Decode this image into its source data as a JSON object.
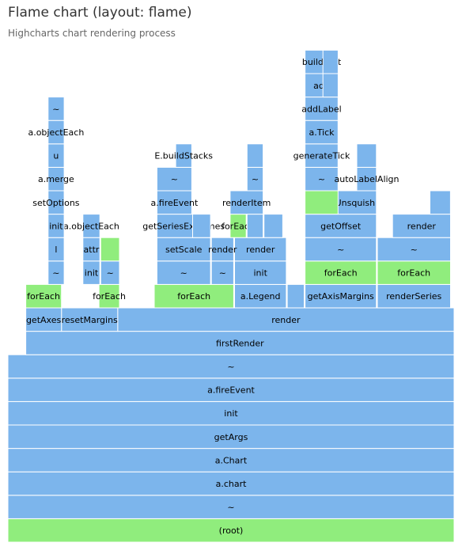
{
  "chart_data": {
    "type": "flame",
    "title": "Flame chart (layout: flame)",
    "subtitle": "Highcharts chart rendering process",
    "colors": {
      "node": "#7cb5ec",
      "highlight": "#90ed7d",
      "border": "#ffffff"
    },
    "frames": [
      {
        "name": "(root)",
        "level": 0,
        "start": 0,
        "end": 100,
        "color": "green"
      },
      {
        "name": "~",
        "level": 1,
        "start": 0,
        "end": 100
      },
      {
        "name": "a.chart",
        "level": 2,
        "start": 0,
        "end": 100
      },
      {
        "name": "a.Chart",
        "level": 3,
        "start": 0,
        "end": 100
      },
      {
        "name": "getArgs",
        "level": 4,
        "start": 0,
        "end": 100
      },
      {
        "name": "init",
        "level": 5,
        "start": 0,
        "end": 100
      },
      {
        "name": "a.fireEvent",
        "level": 6,
        "start": 0,
        "end": 100
      },
      {
        "name": "~",
        "level": 7,
        "start": 0,
        "end": 100
      },
      {
        "name": "firstRender",
        "level": 8,
        "start": 4.0,
        "end": 100
      },
      {
        "name": "getAxes",
        "level": 9,
        "start": 4.0,
        "end": 12.0
      },
      {
        "name": "resetMargins",
        "level": 9,
        "start": 12.0,
        "end": 24.6
      },
      {
        "name": "render",
        "level": 9,
        "start": 24.6,
        "end": 100
      },
      {
        "name": "forEach",
        "level": 10,
        "start": 4.0,
        "end": 12.0,
        "color": "green"
      },
      {
        "name": "forEach",
        "level": 10,
        "start": 20.4,
        "end": 25.0,
        "color": "green"
      },
      {
        "name": "forEach",
        "level": 10,
        "start": 32.8,
        "end": 50.6,
        "color": "green"
      },
      {
        "name": "a.Legend",
        "level": 10,
        "start": 50.8,
        "end": 62.4
      },
      {
        "name": "",
        "level": 10,
        "start": 62.6,
        "end": 66.4
      },
      {
        "name": "getAxisMargins",
        "level": 10,
        "start": 66.6,
        "end": 82.6
      },
      {
        "name": "renderSeries",
        "level": 10,
        "start": 82.8,
        "end": 99.2
      },
      {
        "name": "~",
        "level": 11,
        "start": 9.0,
        "end": 12.6
      },
      {
        "name": "init",
        "level": 11,
        "start": 16.8,
        "end": 20.6
      },
      {
        "name": "~",
        "level": 11,
        "start": 20.8,
        "end": 25.0
      },
      {
        "name": "~",
        "level": 11,
        "start": 33.4,
        "end": 45.4
      },
      {
        "name": "~",
        "level": 11,
        "start": 45.6,
        "end": 50.6
      },
      {
        "name": "init",
        "level": 11,
        "start": 50.8,
        "end": 62.4
      },
      {
        "name": "forEach",
        "level": 11,
        "start": 66.6,
        "end": 82.6,
        "color": "green"
      },
      {
        "name": "forEach",
        "level": 11,
        "start": 82.8,
        "end": 99.2,
        "color": "green"
      },
      {
        "name": "l",
        "level": 12,
        "start": 9.0,
        "end": 12.6
      },
      {
        "name": "attr",
        "level": 12,
        "start": 16.8,
        "end": 20.6
      },
      {
        "name": "",
        "level": 12,
        "start": 20.8,
        "end": 25.0,
        "color": "green"
      },
      {
        "name": "setScale",
        "level": 12,
        "start": 33.4,
        "end": 45.4
      },
      {
        "name": "render",
        "level": 12,
        "start": 45.6,
        "end": 50.6
      },
      {
        "name": "render",
        "level": 12,
        "start": 50.8,
        "end": 62.4
      },
      {
        "name": "~",
        "level": 12,
        "start": 66.6,
        "end": 82.6
      },
      {
        "name": "~",
        "level": 12,
        "start": 82.8,
        "end": 99.2
      },
      {
        "name": "init",
        "level": 13,
        "start": 9.0,
        "end": 12.6
      },
      {
        "name": "a.objectEach",
        "level": 13,
        "start": 16.8,
        "end": 20.6
      },
      {
        "name": "getSeriesExtremes",
        "level": 13,
        "start": 33.4,
        "end": 45.4
      },
      {
        "name": "",
        "level": 13,
        "start": 41.4,
        "end": 45.4
      },
      {
        "name": "forEach",
        "level": 13,
        "start": 49.8,
        "end": 53.4,
        "color": "green"
      },
      {
        "name": "",
        "level": 13,
        "start": 53.6,
        "end": 57.2
      },
      {
        "name": "",
        "level": 13,
        "start": 57.4,
        "end": 61.6
      },
      {
        "name": "getOffset",
        "level": 13,
        "start": 66.6,
        "end": 82.6
      },
      {
        "name": "render",
        "level": 13,
        "start": 86.2,
        "end": 99.2
      },
      {
        "name": "setOptions",
        "level": 14,
        "start": 9.0,
        "end": 12.6
      },
      {
        "name": "a.fireEvent",
        "level": 14,
        "start": 33.4,
        "end": 41.2
      },
      {
        "name": "renderItem",
        "level": 14,
        "start": 49.8,
        "end": 57.2
      },
      {
        "name": "renderUnsquish",
        "level": 14,
        "start": 66.6,
        "end": 82.6
      },
      {
        "name": "",
        "level": 14,
        "start": 66.6,
        "end": 74.0,
        "color": "green"
      },
      {
        "name": "",
        "level": 14,
        "start": 94.6,
        "end": 99.2
      },
      {
        "name": "a.merge",
        "level": 15,
        "start": 9.0,
        "end": 12.6
      },
      {
        "name": "~",
        "level": 15,
        "start": 33.4,
        "end": 41.2
      },
      {
        "name": "~",
        "level": 15,
        "start": 53.6,
        "end": 57.2
      },
      {
        "name": "~",
        "level": 15,
        "start": 66.6,
        "end": 74.0
      },
      {
        "name": "autoLabelAlign",
        "level": 15,
        "start": 78.2,
        "end": 82.6
      },
      {
        "name": "u",
        "level": 16,
        "start": 9.0,
        "end": 12.6
      },
      {
        "name": "E.buildStacks",
        "level": 16,
        "start": 37.6,
        "end": 41.2
      },
      {
        "name": "",
        "level": 16,
        "start": 53.6,
        "end": 57.2
      },
      {
        "name": "generateTick",
        "level": 16,
        "start": 66.6,
        "end": 74.0
      },
      {
        "name": "",
        "level": 16,
        "start": 78.2,
        "end": 82.6
      },
      {
        "name": "a.objectEach",
        "level": 17,
        "start": 9.0,
        "end": 12.6
      },
      {
        "name": "a.Tick",
        "level": 17,
        "start": 66.6,
        "end": 74.0
      },
      {
        "name": "~",
        "level": 18,
        "start": 9.0,
        "end": 12.6
      },
      {
        "name": "addLabel",
        "level": 18,
        "start": 66.6,
        "end": 74.0
      },
      {
        "name": "add",
        "level": 19,
        "start": 66.6,
        "end": 74.0
      },
      {
        "name": "",
        "level": 19,
        "start": 70.6,
        "end": 74.0
      },
      {
        "name": "buildText",
        "level": 20,
        "start": 66.6,
        "end": 74.0
      },
      {
        "name": "",
        "level": 20,
        "start": 70.6,
        "end": 74.0
      }
    ]
  }
}
